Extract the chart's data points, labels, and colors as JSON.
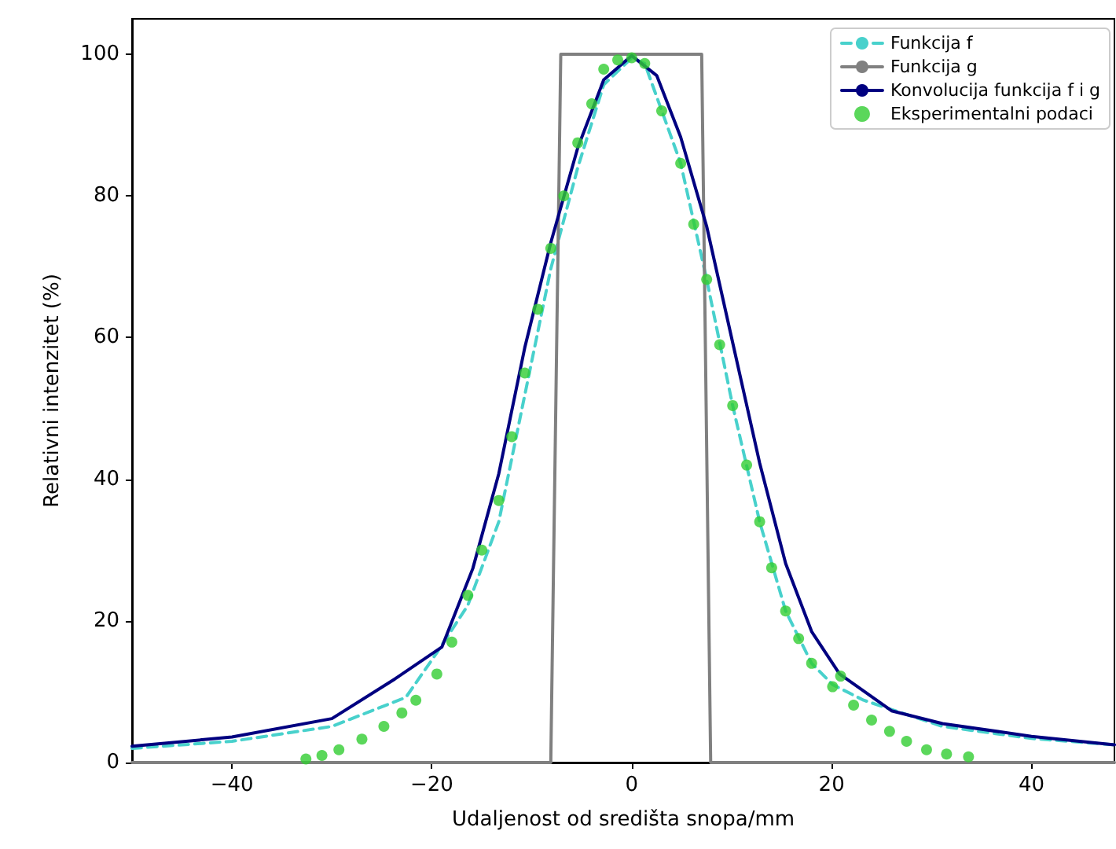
{
  "chart_data": {
    "type": "line",
    "xlabel": "Udaljenost od središta snopa/mm",
    "ylabel": "Relativni intenzitet (%)",
    "xlim": [
      -50,
      48.3
    ],
    "xticks": [
      -40,
      -20,
      0,
      20,
      40
    ],
    "ylim": [
      0,
      105
    ],
    "yticks": [
      0,
      20,
      40,
      60,
      80,
      100
    ],
    "grid": false,
    "legend": "top right",
    "series": [
      {
        "name": "Funkcija f",
        "color": "#48d1cc",
        "line_style": "dashed",
        "marker": "none",
        "x": [
          -50,
          -40,
          -30,
          -22.6,
          -19.5,
          -16.4,
          -13.3,
          -10.7,
          -8.1,
          -5.4,
          -2.8,
          0,
          1.3,
          4.9,
          7.5,
          10.1,
          12.8,
          15.4,
          18,
          20.1,
          23.2,
          31.1,
          40,
          48.3
        ],
        "values": [
          2.0,
          3.0,
          5.1,
          9.2,
          15.5,
          22.2,
          34,
          51.9,
          69.7,
          84,
          95.7,
          99.5,
          98.7,
          84.6,
          68.2,
          50.4,
          34,
          21.4,
          14,
          11,
          8.8,
          5.1,
          3.4,
          2.5
        ]
      },
      {
        "name": "Funkcija g",
        "color": "#808080",
        "line_style": "solid",
        "marker": "none",
        "x": [
          -50,
          -8.1,
          -7.1,
          7.0,
          7.9,
          48.3
        ],
        "values": [
          0,
          0,
          100,
          100,
          0,
          0
        ]
      },
      {
        "name": "Konvolucija funkcija f i g",
        "color": "#000080",
        "line_style": "solid",
        "marker": "none",
        "x": [
          -50,
          -40,
          -30,
          -23.7,
          -19,
          -15.9,
          -13.3,
          -10.7,
          -8.1,
          -5.4,
          -2.8,
          0,
          2.5,
          4.9,
          7.5,
          10.1,
          12.8,
          15.4,
          18,
          20.8,
          26,
          31.1,
          40,
          48.3
        ],
        "values": [
          2.3,
          3.6,
          6.2,
          11.8,
          16.3,
          27.4,
          40.8,
          58.6,
          73.4,
          86.8,
          96.4,
          99.8,
          97,
          88.3,
          75.7,
          59.3,
          42.3,
          28.1,
          18.5,
          12.5,
          7.3,
          5.5,
          3.7,
          2.5
        ]
      },
      {
        "name": "Eksperimentalni podaci",
        "color": "#32cd32",
        "type": "scatter",
        "marker": "circle",
        "x": [
          -32.6,
          -31,
          -29.3,
          -27,
          -24.8,
          -23,
          -21.6,
          -19.5,
          -18,
          -16.4,
          -15,
          -13.3,
          -12,
          -10.7,
          -9.4,
          -8.1,
          -6.8,
          -5.4,
          -4,
          -2.8,
          -1.4,
          0,
          1.3,
          3,
          4.9,
          6.2,
          7.5,
          8.8,
          10.1,
          11.5,
          12.8,
          14,
          15.4,
          16.7,
          18,
          20.1,
          20.9,
          22.2,
          24,
          25.8,
          27.5,
          29.5,
          31.5,
          33.7
        ],
        "values": [
          0.5,
          1.0,
          1.8,
          3.3,
          5.1,
          7,
          8.8,
          12.5,
          17,
          23.6,
          30,
          37,
          46,
          55,
          64,
          72.6,
          80,
          87.5,
          93,
          97.9,
          99.2,
          99.5,
          98.7,
          92,
          84.6,
          76,
          68.2,
          59,
          50.4,
          42,
          34,
          27.5,
          21.4,
          17.5,
          14,
          10.7,
          12.2,
          8.1,
          6,
          4.4,
          3,
          1.8,
          1.2,
          0.8
        ]
      }
    ]
  }
}
